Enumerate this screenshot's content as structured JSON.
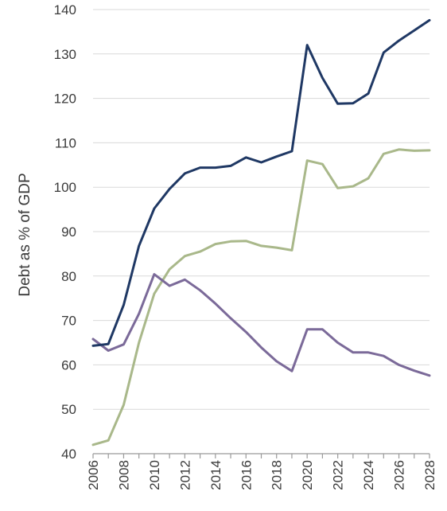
{
  "chart_data": {
    "type": "line",
    "ylabel": "Debt as % of GDP",
    "xlabel": "",
    "title": "",
    "ylim": [
      40,
      140
    ],
    "xlim": [
      2006,
      2028
    ],
    "grid": "horizontal",
    "x": [
      2006,
      2007,
      2008,
      2009,
      2010,
      2011,
      2012,
      2013,
      2014,
      2015,
      2016,
      2017,
      2018,
      2019,
      2020,
      2021,
      2022,
      2023,
      2024,
      2025,
      2026,
      2027,
      2028
    ],
    "x_tick_labels": [
      "2006",
      "2008",
      "2010",
      "2012",
      "2014",
      "2016",
      "2018",
      "2020",
      "2022",
      "2024",
      "2026",
      "2028"
    ],
    "y_tick_labels": [
      "40",
      "50",
      "60",
      "70",
      "80",
      "90",
      "100",
      "110",
      "120",
      "130",
      "140"
    ],
    "series": [
      {
        "color": "#1f3864",
        "values": [
          64.3,
          64.7,
          73.5,
          86.8,
          95.2,
          99.6,
          103.1,
          104.4,
          104.4,
          104.8,
          106.7,
          105.6,
          106.9,
          108.1,
          132.0,
          124.6,
          118.8,
          118.9,
          121.1,
          130.3,
          133.0,
          135.3,
          137.6
        ]
      },
      {
        "color": "#a9b88a",
        "values": [
          42.0,
          43.0,
          51.0,
          65.0,
          76.0,
          81.5,
          84.5,
          85.5,
          87.2,
          87.8,
          87.9,
          86.8,
          86.4,
          85.8,
          106.0,
          105.2,
          99.8,
          100.2,
          102.0,
          107.5,
          108.5,
          108.2,
          108.3
        ]
      },
      {
        "color": "#7b6a99",
        "values": [
          65.8,
          63.2,
          64.6,
          71.5,
          80.4,
          77.8,
          79.2,
          76.8,
          73.8,
          70.5,
          67.4,
          63.9,
          60.8,
          58.6,
          68.0,
          68.0,
          65.0,
          62.8,
          62.8,
          62.0,
          60.0,
          58.7,
          57.6
        ]
      }
    ]
  }
}
